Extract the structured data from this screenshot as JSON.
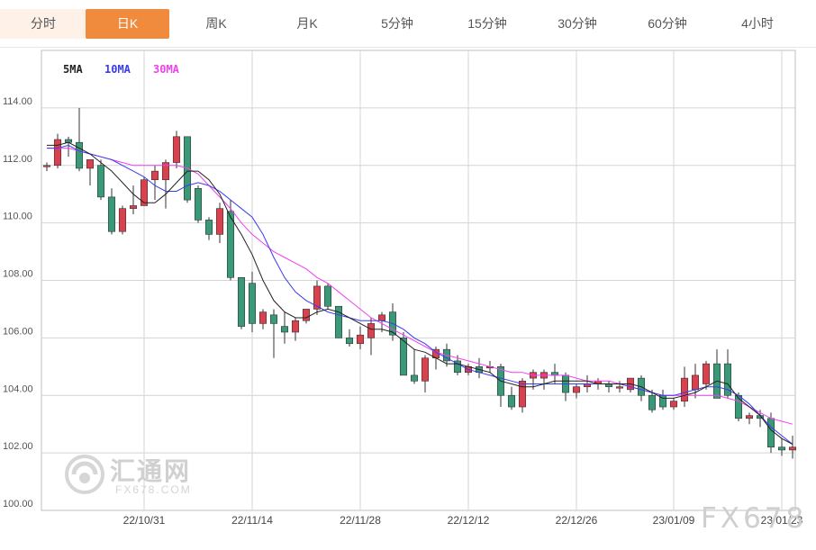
{
  "tabs": [
    {
      "label": "分时",
      "state": "first"
    },
    {
      "label": "日K",
      "state": "active"
    },
    {
      "label": "周K",
      "state": ""
    },
    {
      "label": "月K",
      "state": ""
    },
    {
      "label": "5分钟",
      "state": ""
    },
    {
      "label": "15分钟",
      "state": ""
    },
    {
      "label": "30分钟",
      "state": ""
    },
    {
      "label": "60分钟",
      "state": ""
    },
    {
      "label": "4小时",
      "state": ""
    }
  ],
  "watermark": {
    "main": "汇通网",
    "sub": "FX678.COM",
    "brand": "FX678"
  },
  "chart_data": {
    "type": "candlestick",
    "ylim": [
      100,
      116
    ],
    "yticks": [
      "100.00",
      "102.00",
      "104.00",
      "106.00",
      "108.00",
      "110.00",
      "112.00",
      "114.00"
    ],
    "xtick_labels": [
      {
        "label": "22/10/31",
        "index": 9
      },
      {
        "label": "22/11/14",
        "index": 19
      },
      {
        "label": "22/11/28",
        "index": 29
      },
      {
        "label": "22/12/12",
        "index": 39
      },
      {
        "label": "22/12/26",
        "index": 49
      },
      {
        "label": "23/01/09",
        "index": 58
      },
      {
        "label": "23/01/23",
        "index": 68
      }
    ],
    "legend": [
      {
        "name": "5MA",
        "color": "#222222"
      },
      {
        "name": "10MA",
        "color": "#3a3af0"
      },
      {
        "name": "30MA",
        "color": "#f040f0"
      }
    ],
    "up_color": "#d9414f",
    "down_color": "#3a9a78",
    "ohlc": [
      [
        112.0,
        112.1,
        111.8,
        112.0
      ],
      [
        112.0,
        113.1,
        111.9,
        112.9
      ],
      [
        112.9,
        113.0,
        112.3,
        112.8
      ],
      [
        112.8,
        114.0,
        111.8,
        111.9
      ],
      [
        111.9,
        112.2,
        111.3,
        112.2
      ],
      [
        112.0,
        112.2,
        110.8,
        110.9
      ],
      [
        110.9,
        111.2,
        109.6,
        109.7
      ],
      [
        109.7,
        110.6,
        109.6,
        110.5
      ],
      [
        110.5,
        111.3,
        110.3,
        110.6
      ],
      [
        110.6,
        111.6,
        110.6,
        111.5
      ],
      [
        111.5,
        112.0,
        110.8,
        111.8
      ],
      [
        111.5,
        112.2,
        110.5,
        112.1
      ],
      [
        112.1,
        113.2,
        111.9,
        113.0
      ],
      [
        113.0,
        113.0,
        110.7,
        110.8
      ],
      [
        111.2,
        111.3,
        110.0,
        110.1
      ],
      [
        110.1,
        110.2,
        109.4,
        109.6
      ],
      [
        109.6,
        110.7,
        109.3,
        110.5
      ],
      [
        110.4,
        110.8,
        108.0,
        108.1
      ],
      [
        108.1,
        108.1,
        106.3,
        106.4
      ],
      [
        107.9,
        108.3,
        106.2,
        106.5
      ],
      [
        106.5,
        107.0,
        106.3,
        106.9
      ],
      [
        106.8,
        107.0,
        105.3,
        106.5
      ],
      [
        106.4,
        106.9,
        105.8,
        106.2
      ],
      [
        106.2,
        106.7,
        105.9,
        106.6
      ],
      [
        106.6,
        107.0,
        106.5,
        107.0
      ],
      [
        107.0,
        108.0,
        106.8,
        107.8
      ],
      [
        107.8,
        107.9,
        107.0,
        107.1
      ],
      [
        107.1,
        107.1,
        106.0,
        106.0
      ],
      [
        106.0,
        106.3,
        105.7,
        105.8
      ],
      [
        105.8,
        106.4,
        105.6,
        106.1
      ],
      [
        106.0,
        106.7,
        105.4,
        106.5
      ],
      [
        106.6,
        106.9,
        106.2,
        106.8
      ],
      [
        106.9,
        107.2,
        105.9,
        106.1
      ],
      [
        106.0,
        106.2,
        104.7,
        104.7
      ],
      [
        104.7,
        105.6,
        104.4,
        104.5
      ],
      [
        104.5,
        105.4,
        104.1,
        105.3
      ],
      [
        105.3,
        105.7,
        104.9,
        105.6
      ],
      [
        105.6,
        105.8,
        105.0,
        105.2
      ],
      [
        105.2,
        105.4,
        104.7,
        104.8
      ],
      [
        104.8,
        105.1,
        104.7,
        105.0
      ],
      [
        105.0,
        105.3,
        104.6,
        104.8
      ],
      [
        105.0,
        105.2,
        104.8,
        105.0
      ],
      [
        105.0,
        105.1,
        103.6,
        104.0
      ],
      [
        104.0,
        104.3,
        103.5,
        103.6
      ],
      [
        103.6,
        104.6,
        103.4,
        104.5
      ],
      [
        104.6,
        104.9,
        104.2,
        104.8
      ],
      [
        104.6,
        104.9,
        104.2,
        104.8
      ],
      [
        104.8,
        105.1,
        104.4,
        104.7
      ],
      [
        104.7,
        104.8,
        103.8,
        104.1
      ],
      [
        104.1,
        104.4,
        103.9,
        104.3
      ],
      [
        104.3,
        104.7,
        104.1,
        104.4
      ],
      [
        104.4,
        104.6,
        104.2,
        104.5
      ],
      [
        104.4,
        104.5,
        104.1,
        104.3
      ],
      [
        104.3,
        104.5,
        104.1,
        104.3
      ],
      [
        104.2,
        104.6,
        104.1,
        104.6
      ],
      [
        104.6,
        104.7,
        103.8,
        104.0
      ],
      [
        104.0,
        104.2,
        103.4,
        103.5
      ],
      [
        104.0,
        104.2,
        103.5,
        103.6
      ],
      [
        103.6,
        103.9,
        103.5,
        103.8
      ],
      [
        103.8,
        105.0,
        103.6,
        104.6
      ],
      [
        104.2,
        105.1,
        103.9,
        104.7
      ],
      [
        104.4,
        105.2,
        104.2,
        105.1
      ],
      [
        105.1,
        105.6,
        103.9,
        103.9
      ],
      [
        105.1,
        105.6,
        103.9,
        104.0
      ],
      [
        104.0,
        104.1,
        103.1,
        103.2
      ],
      [
        103.2,
        103.4,
        103.0,
        103.3
      ],
      [
        103.3,
        103.5,
        102.9,
        103.2
      ],
      [
        103.2,
        103.4,
        102.0,
        102.2
      ],
      [
        102.2,
        102.5,
        101.9,
        102.1
      ],
      [
        102.1,
        102.6,
        101.8,
        102.2
      ]
    ],
    "ma5": [
      112.7,
      112.7,
      112.8,
      112.6,
      112.4,
      112.1,
      111.8,
      111.4,
      111.0,
      110.7,
      110.7,
      111.0,
      111.4,
      111.8,
      111.8,
      111.5,
      111.0,
      110.2,
      109.6,
      108.9,
      108.0,
      107.3,
      106.9,
      106.7,
      106.7,
      106.9,
      107.0,
      106.9,
      106.7,
      106.5,
      106.3,
      106.3,
      106.2,
      105.9,
      105.6,
      105.5,
      105.3,
      105.1,
      105.1,
      105.0,
      104.9,
      104.8,
      104.5,
      104.4,
      104.3,
      104.3,
      104.4,
      104.5,
      104.5,
      104.5,
      104.5,
      104.4,
      104.4,
      104.4,
      104.4,
      104.3,
      104.1,
      103.9,
      103.9,
      104.0,
      104.1,
      104.3,
      104.5,
      104.4,
      103.9,
      103.6,
      103.3,
      102.8,
      102.5,
      102.3
    ],
    "ma10": [
      112.6,
      112.6,
      112.7,
      112.5,
      112.4,
      112.3,
      112.2,
      112.0,
      111.8,
      111.6,
      111.3,
      111.1,
      111.1,
      111.3,
      111.4,
      111.3,
      111.1,
      110.8,
      110.5,
      110.2,
      109.6,
      108.8,
      108.1,
      107.6,
      107.3,
      107.1,
      106.9,
      106.8,
      106.7,
      106.6,
      106.6,
      106.6,
      106.5,
      106.3,
      106.0,
      105.8,
      105.5,
      105.3,
      105.1,
      104.9,
      104.8,
      104.7,
      104.6,
      104.5,
      104.4,
      104.4,
      104.4,
      104.4,
      104.4,
      104.4,
      104.4,
      104.4,
      104.4,
      104.4,
      104.3,
      104.2,
      104.1,
      104.0,
      104.0,
      104.1,
      104.2,
      104.3,
      104.3,
      104.2,
      104.0,
      103.7,
      103.3,
      102.9,
      102.6,
      102.3
    ],
    "ma30": [
      112.6,
      112.6,
      112.6,
      112.5,
      112.4,
      112.3,
      112.2,
      112.1,
      112.0,
      112.0,
      112.0,
      112.0,
      112.0,
      111.9,
      111.7,
      111.3,
      110.9,
      110.5,
      110.0,
      109.6,
      109.3,
      109.0,
      108.8,
      108.6,
      108.4,
      108.1,
      107.9,
      107.6,
      107.3,
      107.0,
      106.7,
      106.5,
      106.3,
      106.1,
      105.9,
      105.7,
      105.5,
      105.4,
      105.3,
      105.2,
      105.1,
      105.0,
      104.9,
      104.8,
      104.8,
      104.7,
      104.7,
      104.7,
      104.7,
      104.6,
      104.5,
      104.5,
      104.5,
      104.4,
      104.3,
      104.2,
      104.1,
      104.0,
      104.0,
      104.0,
      104.0,
      104.0,
      104.0,
      103.9,
      103.8,
      103.6,
      103.4,
      103.2,
      103.1,
      103.0
    ]
  }
}
